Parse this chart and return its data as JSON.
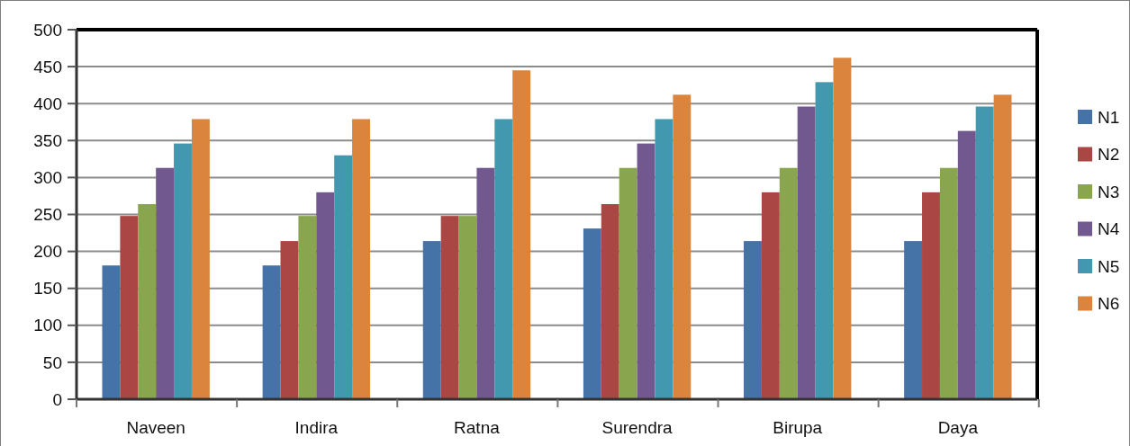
{
  "chart_data": {
    "type": "bar",
    "categories": [
      "Naveen",
      "Indira",
      "Ratna",
      "Surendra",
      "Birupa",
      "Daya"
    ],
    "series": [
      {
        "name": "N1",
        "color": "#4572a7",
        "values": [
          181,
          181,
          214,
          231,
          214,
          214
        ]
      },
      {
        "name": "N2",
        "color": "#aa4643",
        "values": [
          248,
          214,
          248,
          264,
          280,
          280
        ]
      },
      {
        "name": "N3",
        "color": "#89a54e",
        "values": [
          264,
          248,
          248,
          313,
          313,
          313
        ]
      },
      {
        "name": "N4",
        "color": "#71588f",
        "values": [
          313,
          280,
          313,
          346,
          396,
          363
        ]
      },
      {
        "name": "N5",
        "color": "#4198af",
        "values": [
          346,
          330,
          379,
          379,
          429,
          396
        ]
      },
      {
        "name": "N6",
        "color": "#db843d",
        "values": [
          379,
          379,
          445,
          412,
          462,
          412
        ]
      }
    ],
    "ylim": [
      0,
      500
    ],
    "yticks": [
      0,
      50,
      100,
      150,
      200,
      250,
      300,
      350,
      400,
      450,
      500
    ],
    "grid": "y",
    "legend": "right"
  }
}
